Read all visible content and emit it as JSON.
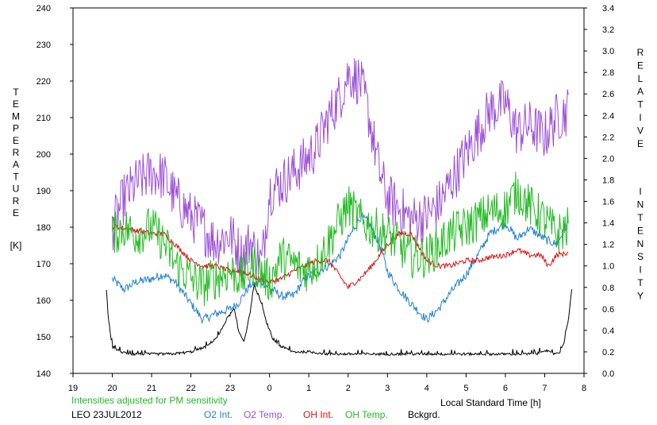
{
  "chart_data": {
    "type": "line",
    "left_axis_label": "TEMPERATURE",
    "left_axis_unit": "[K]",
    "right_axis_label": "RELATIVE INTENSITY",
    "x_label": "Local Standard Time [h]",
    "note": "Intensities adjusted for PM sensitivity",
    "station_date": "LEO 23JUL2012",
    "ylim_left": [
      140,
      240
    ],
    "ylim_right": [
      0.0,
      3.4
    ],
    "x_range": [
      19,
      32
    ],
    "x_tick_labels": [
      "19",
      "20",
      "21",
      "22",
      "23",
      "0",
      "1",
      "2",
      "3",
      "4",
      "5",
      "6",
      "7",
      "8"
    ],
    "y_left_ticks": [
      140,
      150,
      160,
      170,
      180,
      190,
      200,
      210,
      220,
      230,
      240
    ],
    "y_right_ticks": [
      "0.0",
      "0.2",
      "0.4",
      "0.6",
      "0.8",
      "1.0",
      "1.2",
      "1.4",
      "1.6",
      "1.8",
      "2.0",
      "2.2",
      "2.4",
      "2.6",
      "2.8",
      "3.0",
      "3.2",
      "3.4"
    ],
    "series": [
      {
        "name": "O2 Int.",
        "axis": "right",
        "color": "#1f7fd6",
        "noise": 0.04,
        "x": [
          20.0,
          20.3,
          20.6,
          21.0,
          21.3,
          21.6,
          22.0,
          22.3,
          22.6,
          23.0,
          23.2,
          23.5,
          23.8,
          24.0,
          24.3,
          24.6,
          24.9,
          25.2,
          25.5,
          25.8,
          26.0,
          26.3,
          26.5,
          26.8,
          27.0,
          27.3,
          27.6,
          28.0,
          28.3,
          28.6,
          29.0,
          29.3,
          29.6,
          30.0,
          30.3,
          30.6,
          31.0,
          31.3,
          31.6
        ],
        "y": [
          0.88,
          0.78,
          0.85,
          0.88,
          0.92,
          0.85,
          0.65,
          0.5,
          0.55,
          0.6,
          0.65,
          0.82,
          0.85,
          0.8,
          0.72,
          0.72,
          0.88,
          0.95,
          1.0,
          1.1,
          1.25,
          1.45,
          1.42,
          1.2,
          0.95,
          0.78,
          0.65,
          0.5,
          0.6,
          0.75,
          0.92,
          1.1,
          1.3,
          1.4,
          1.25,
          1.35,
          1.25,
          1.2,
          1.4
        ]
      },
      {
        "name": "O2 Temp.",
        "axis": "left",
        "color": "#9b4fd8",
        "noise": 7,
        "x": [
          20.0,
          20.3,
          20.6,
          21.0,
          21.3,
          21.6,
          22.0,
          22.3,
          22.6,
          23.0,
          23.3,
          23.5,
          23.8,
          24.0,
          24.3,
          24.6,
          24.9,
          25.2,
          25.5,
          25.8,
          26.0,
          26.3,
          26.5,
          26.8,
          27.0,
          27.3,
          27.6,
          28.0,
          28.3,
          28.6,
          29.0,
          29.3,
          29.6,
          30.0,
          30.3,
          30.6,
          31.0,
          31.3,
          31.6
        ],
        "y": [
          180,
          188,
          192,
          195,
          194,
          188,
          183,
          180,
          176,
          178,
          172,
          176,
          170,
          190,
          192,
          195,
          198,
          202,
          210,
          216,
          222,
          220,
          212,
          195,
          188,
          185,
          182,
          183,
          186,
          192,
          200,
          206,
          212,
          214,
          206,
          208,
          205,
          210,
          212
        ]
      },
      {
        "name": "OH Int.",
        "axis": "right",
        "color": "#dd1111",
        "noise": 0.025,
        "x": [
          20.0,
          20.3,
          20.6,
          21.0,
          21.3,
          21.6,
          22.0,
          22.3,
          22.6,
          23.0,
          23.3,
          23.6,
          24.0,
          24.3,
          24.6,
          24.9,
          25.2,
          25.5,
          25.8,
          26.0,
          26.3,
          26.6,
          27.0,
          27.3,
          27.6,
          28.0,
          28.3,
          28.6,
          29.0,
          29.3,
          29.6,
          30.0,
          30.3,
          30.6,
          30.9,
          31.1,
          31.3,
          31.6
        ],
        "y": [
          1.37,
          1.35,
          1.33,
          1.3,
          1.3,
          1.2,
          1.05,
          1.0,
          1.0,
          0.95,
          0.95,
          0.9,
          0.85,
          0.88,
          0.95,
          1.0,
          1.05,
          1.05,
          0.9,
          0.8,
          0.88,
          1.0,
          1.2,
          1.3,
          1.3,
          1.05,
          1.0,
          1.0,
          1.05,
          1.05,
          1.08,
          1.1,
          1.15,
          1.1,
          1.1,
          1.0,
          1.1,
          1.12
        ]
      },
      {
        "name": "OH Temp.",
        "axis": "left",
        "color": "#22bb22",
        "noise": 6,
        "x": [
          20.0,
          20.3,
          20.6,
          21.0,
          21.3,
          21.6,
          22.0,
          22.3,
          22.6,
          23.0,
          23.3,
          23.6,
          24.0,
          24.3,
          24.6,
          24.9,
          25.2,
          25.5,
          25.8,
          26.0,
          26.3,
          26.6,
          27.0,
          27.3,
          27.6,
          28.0,
          28.3,
          28.6,
          29.0,
          29.3,
          29.6,
          30.0,
          30.3,
          30.6,
          31.0,
          31.3,
          31.6
        ],
        "y": [
          178,
          180,
          178,
          180,
          176,
          170,
          166,
          164,
          166,
          168,
          166,
          170,
          165,
          172,
          170,
          168,
          170,
          176,
          182,
          186,
          182,
          180,
          178,
          175,
          172,
          172,
          175,
          178,
          180,
          182,
          184,
          185,
          190,
          186,
          182,
          178,
          180
        ]
      },
      {
        "name": "Bckgrd.",
        "axis": "right",
        "color": "#000000",
        "noise": 0.012,
        "x": [
          19.85,
          19.9,
          20.0,
          20.2,
          20.5,
          21.0,
          21.5,
          22.0,
          22.4,
          22.7,
          22.9,
          23.1,
          23.2,
          23.35,
          23.5,
          23.6,
          23.75,
          23.9,
          24.1,
          24.3,
          24.6,
          25.0,
          25.5,
          26.0,
          26.5,
          27.0,
          27.5,
          28.0,
          28.5,
          29.0,
          29.5,
          30.0,
          30.5,
          30.8,
          31.0,
          31.2,
          31.4,
          31.5,
          31.6,
          31.7
        ],
        "y": [
          0.78,
          0.5,
          0.25,
          0.2,
          0.18,
          0.18,
          0.18,
          0.2,
          0.25,
          0.35,
          0.5,
          0.6,
          0.4,
          0.3,
          0.55,
          0.82,
          0.7,
          0.5,
          0.3,
          0.25,
          0.2,
          0.2,
          0.18,
          0.18,
          0.18,
          0.18,
          0.18,
          0.18,
          0.18,
          0.18,
          0.18,
          0.18,
          0.18,
          0.18,
          0.22,
          0.18,
          0.2,
          0.3,
          0.5,
          0.82
        ]
      }
    ]
  }
}
